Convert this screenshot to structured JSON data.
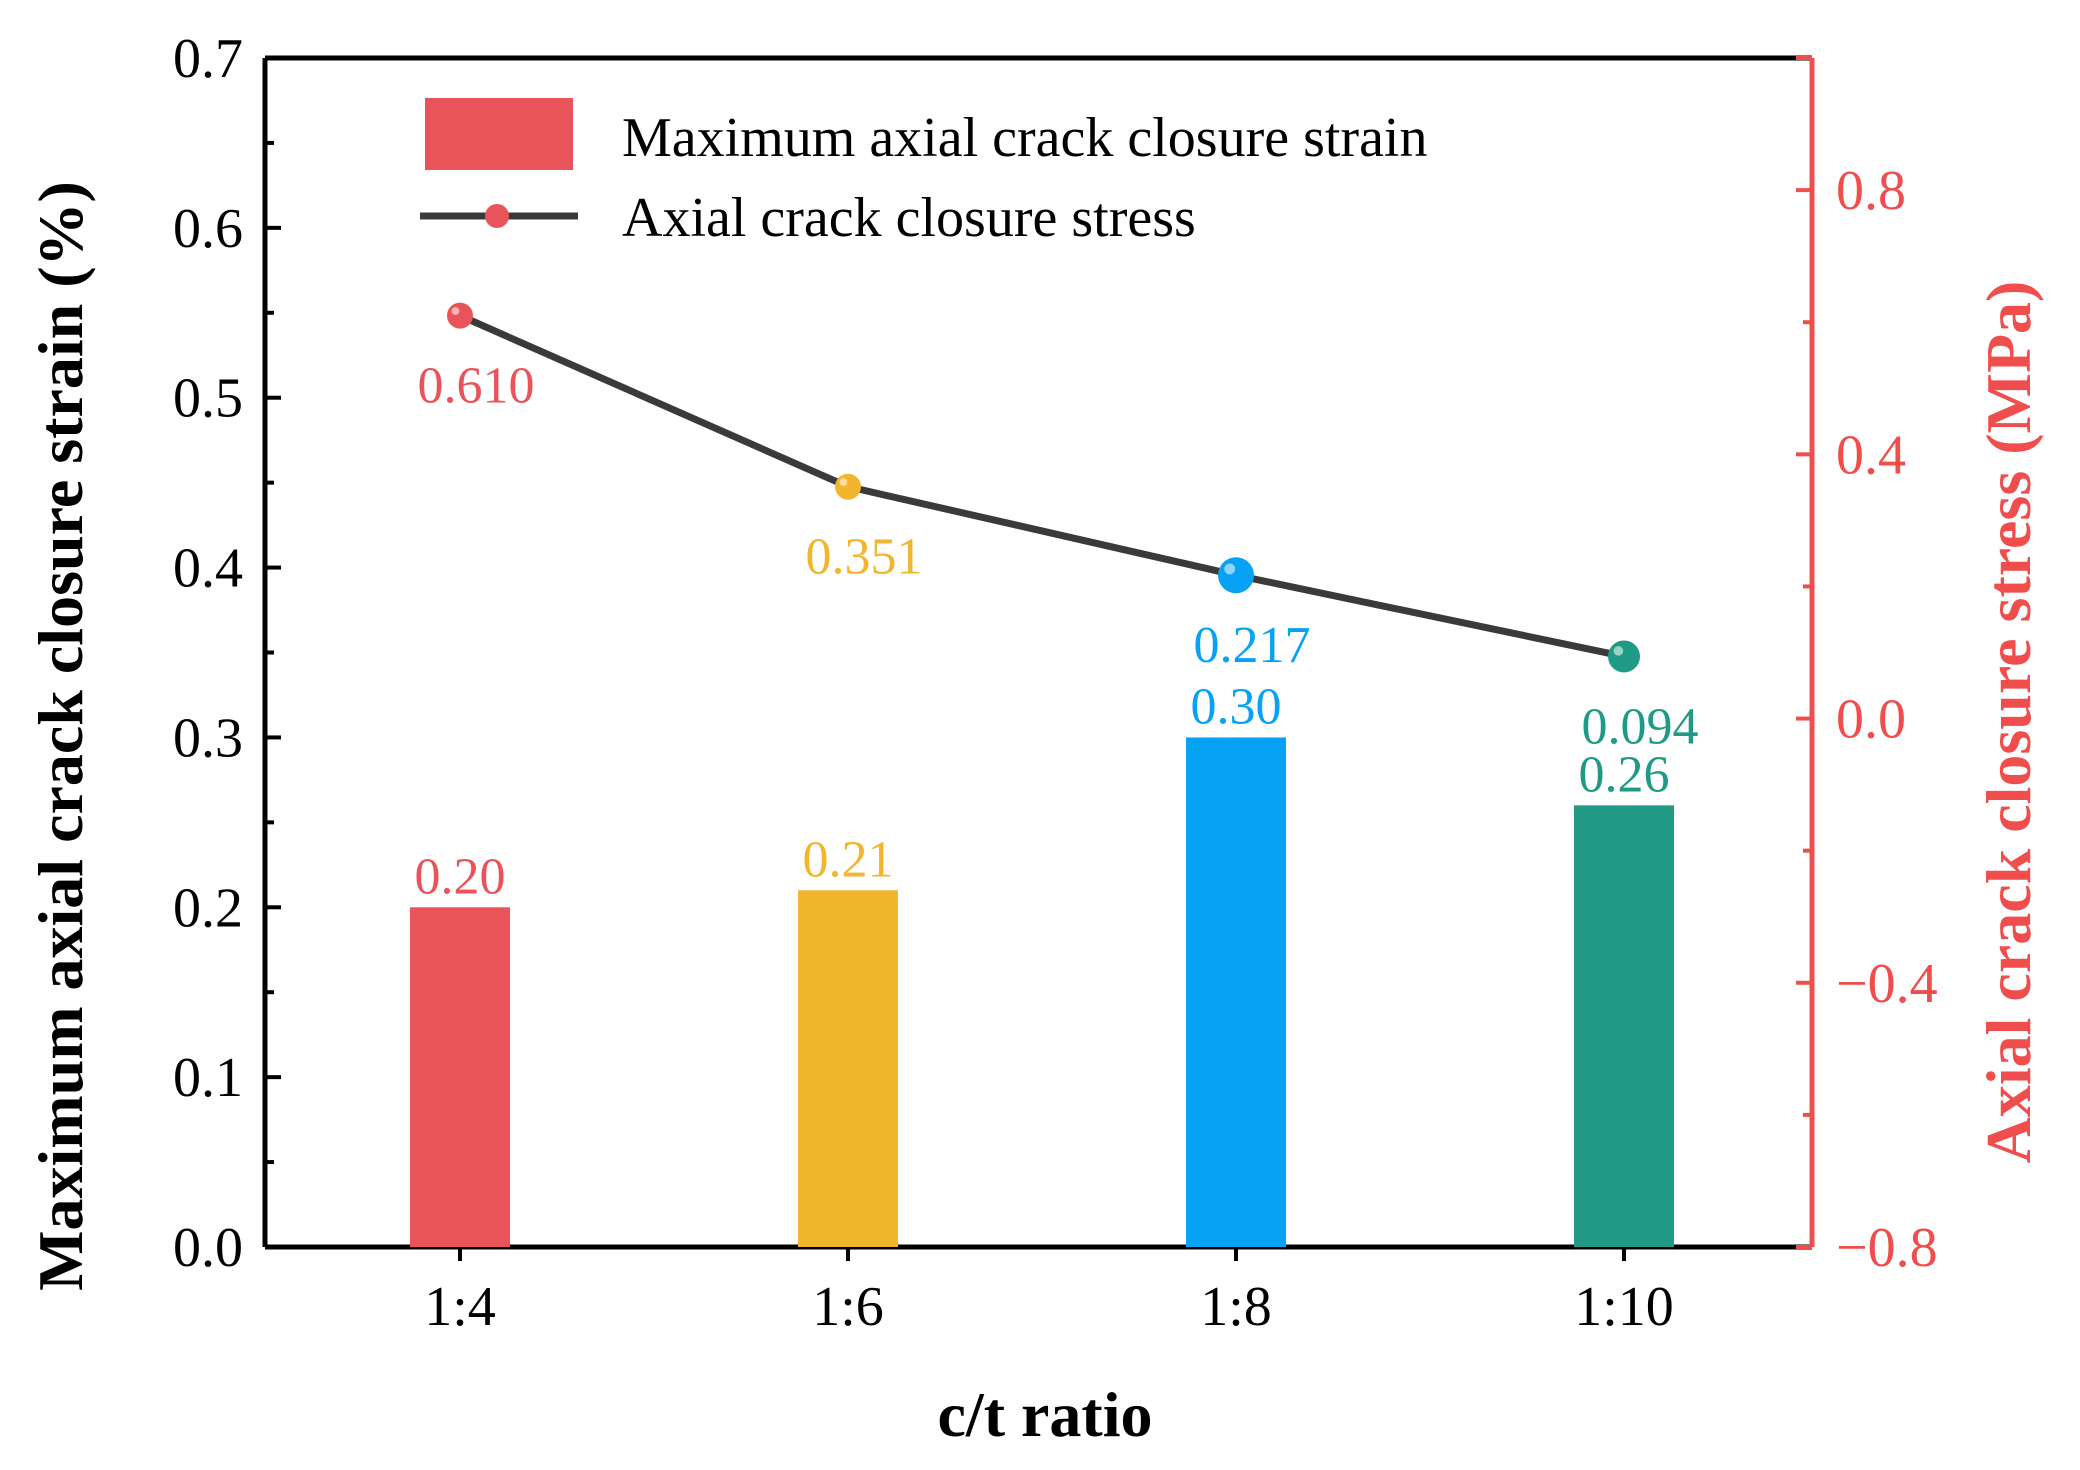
{
  "chart_data": {
    "type": "bar",
    "title": "",
    "xlabel": "c/t ratio",
    "ylabel": "Maximum axial crack closure strain (%)",
    "y2label": "Axial crack closure stress (MPa)",
    "categories": [
      "1:4",
      "1:6",
      "1:8",
      "1:10"
    ],
    "ylim": [
      0,
      0.7
    ],
    "y2lim": [
      -0.8,
      1.0
    ],
    "yticks": [
      "0.0",
      "0.1",
      "0.2",
      "0.3",
      "0.4",
      "0.5",
      "0.6",
      "0.7"
    ],
    "y2ticks": [
      "−0.8",
      "−0.4",
      "0.0",
      "0.4",
      "0.8"
    ],
    "bar_series": {
      "name": "Maximum axial crack closure strain",
      "values": [
        0.2,
        0.21,
        0.3,
        0.26
      ],
      "labels": [
        "0.20",
        "0.21",
        "0.30",
        "0.26"
      ],
      "axis": "left"
    },
    "line_series": {
      "name": "Axial crack closure stress",
      "values": [
        0.61,
        0.351,
        0.217,
        0.094
      ],
      "labels": [
        "0.610",
        "0.351",
        "0.217",
        "0.094"
      ],
      "axis": "right"
    },
    "point_colors": [
      "#e8545a",
      "#f2b52e",
      "#08a2f5",
      "#1f9a85"
    ],
    "line_color": "#3a3a3a",
    "right_axis_color": "#f04d4d",
    "legend": {
      "position": "top-left"
    }
  }
}
